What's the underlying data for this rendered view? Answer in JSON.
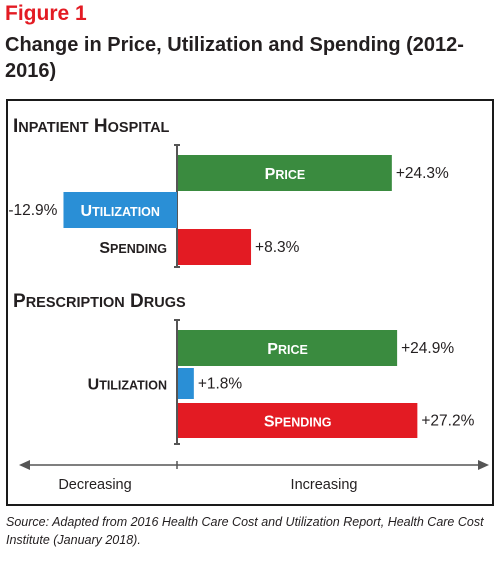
{
  "figure_label": "Figure 1",
  "title": "Change in Price, Utilization and Spending (2012-2016)",
  "source": {
    "prefix": "Source: Adapted from 2016 Health Care Cost and Utilization Report, ",
    "publication": "Health Care Cost Institute",
    "suffix": " (January 2018)."
  },
  "axis": {
    "left_label": "Decreasing",
    "right_label": "Increasing"
  },
  "colors": {
    "price": "#3a8b3f",
    "utilization": "#2a8fd6",
    "spending": "#e31b23",
    "title_red": "#e31b23"
  },
  "chart_data": [
    {
      "type": "bar",
      "orientation": "horizontal",
      "title": "Inpatient Hospital",
      "categories": [
        "Price",
        "Utilization",
        "Spending"
      ],
      "values": [
        24.3,
        -12.9,
        8.3
      ],
      "value_labels": [
        "+24.3%",
        "-12.9%",
        "+8.3%"
      ],
      "unit": "%",
      "xlim": [
        -25,
        37
      ]
    },
    {
      "type": "bar",
      "orientation": "horizontal",
      "title": "Prescription Drugs",
      "categories": [
        "Price",
        "Utilization",
        "Spending"
      ],
      "values": [
        24.9,
        1.8,
        27.2
      ],
      "value_labels": [
        "+24.9%",
        "+1.8%",
        "+27.2%"
      ],
      "unit": "%",
      "xlim": [
        -25,
        37
      ]
    }
  ]
}
